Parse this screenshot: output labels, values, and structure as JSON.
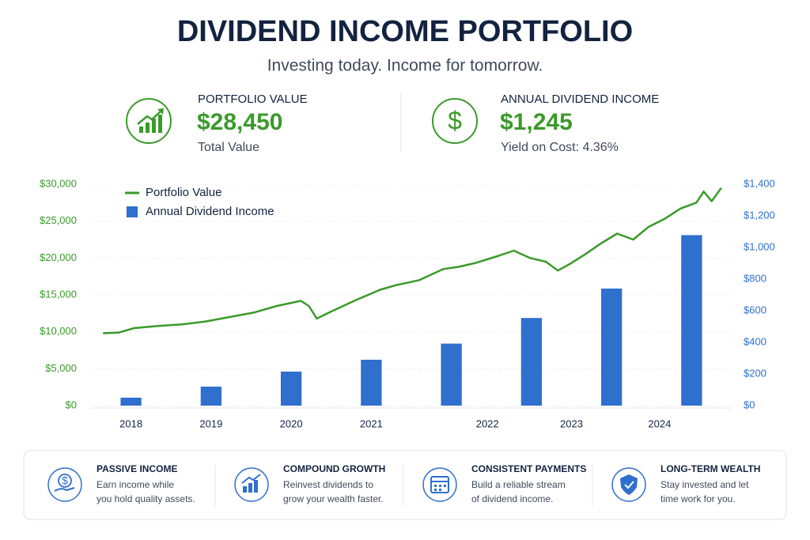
{
  "header": {
    "title": "DIVIDEND INCOME PORTFOLIO",
    "subtitle": "Investing today. Income for tomorrow."
  },
  "kpis": [
    {
      "label": "PORTFOLIO VALUE",
      "value": "$28,450",
      "caption": "Total Value"
    },
    {
      "label": "ANNUAL DIVIDEND INCOME",
      "value": "$1,245",
      "caption": "Yield on Cost: 4.36%"
    }
  ],
  "chart_data": {
    "type": "bar_line",
    "xlim": [
      -0.5,
      7.5
    ],
    "xticks": [
      {
        "value": 0,
        "label": "2018"
      },
      {
        "value": 1,
        "label": "2019"
      },
      {
        "value": 2,
        "label": "2020"
      },
      {
        "value": 3,
        "label": "2021"
      },
      {
        "value": 4.45,
        "label": "2022"
      },
      {
        "value": 5.5,
        "label": "2023"
      },
      {
        "value": 6.6,
        "label": "2024"
      }
    ],
    "ylim": [
      0,
      30000
    ],
    "yticks": [
      {
        "value": 0,
        "label": "$0"
      },
      {
        "value": 5000,
        "label": "$5,000"
      },
      {
        "value": 10000,
        "label": "$10,000"
      },
      {
        "value": 15000,
        "label": "$15,000"
      },
      {
        "value": 20000,
        "label": "$20,000"
      },
      {
        "value": 25000,
        "label": "$25,000"
      },
      {
        "value": 30000,
        "label": "$30,000"
      }
    ],
    "y2lim": [
      0,
      1400
    ],
    "y2ticks": [
      {
        "value": 0,
        "label": "$0"
      },
      {
        "value": 200,
        "label": "$200"
      },
      {
        "value": 400,
        "label": "$400"
      },
      {
        "value": 600,
        "label": "$600"
      },
      {
        "value": 800,
        "label": "$800"
      },
      {
        "value": 1000,
        "label": "$1,000"
      },
      {
        "value": 1200,
        "label": "$1,200"
      },
      {
        "value": 1400,
        "label": "$1,400"
      }
    ],
    "grid": true,
    "legend": "upper left",
    "series": [
      {
        "name": "Portfolio Value",
        "type": "line",
        "color": "#3a9a2a",
        "x": [
          -0.35,
          -0.15,
          0.04,
          0.34,
          0.64,
          0.93,
          1.23,
          1.53,
          1.82,
          2.12,
          2.22,
          2.32,
          2.51,
          2.81,
          3.11,
          3.3,
          3.6,
          3.9,
          4.09,
          4.29,
          4.59,
          4.78,
          4.98,
          5.18,
          5.33,
          5.48,
          5.67,
          5.87,
          6.07,
          6.27,
          6.46,
          6.66,
          6.86,
          7.06,
          7.15,
          7.25,
          7.37
        ],
        "values": [
          9800,
          9900,
          10500,
          10800,
          11000,
          11400,
          12000,
          12600,
          13500,
          14200,
          13500,
          11800,
          12800,
          14300,
          15700,
          16300,
          17000,
          18500,
          18800,
          19300,
          20300,
          21000,
          20000,
          19500,
          18300,
          19200,
          20500,
          22000,
          23300,
          22500,
          24200,
          25300,
          26700,
          27500,
          29000,
          27700,
          29500
        ]
      },
      {
        "name": "Annual Dividend Income",
        "type": "bar",
        "axis": "y2",
        "color": "#2f6fce",
        "x": [
          0,
          1,
          2,
          3,
          4,
          5,
          6,
          7
        ],
        "values": [
          50,
          120,
          215,
          290,
          392,
          554,
          740,
          1078
        ]
      }
    ]
  },
  "features": [
    {
      "title": "PASSIVE INCOME",
      "lines": [
        "Earn income while",
        "you hold quality assets."
      ]
    },
    {
      "title": "COMPOUND GROWTH",
      "lines": [
        "Reinvest dividends to",
        "grow your wealth faster."
      ]
    },
    {
      "title": "CONSISTENT PAYMENTS",
      "lines": [
        "Build a reliable stream",
        "of dividend income."
      ]
    },
    {
      "title": "LONG-TERM WEALTH",
      "lines": [
        "Stay invested and let",
        "time work for you."
      ]
    }
  ]
}
